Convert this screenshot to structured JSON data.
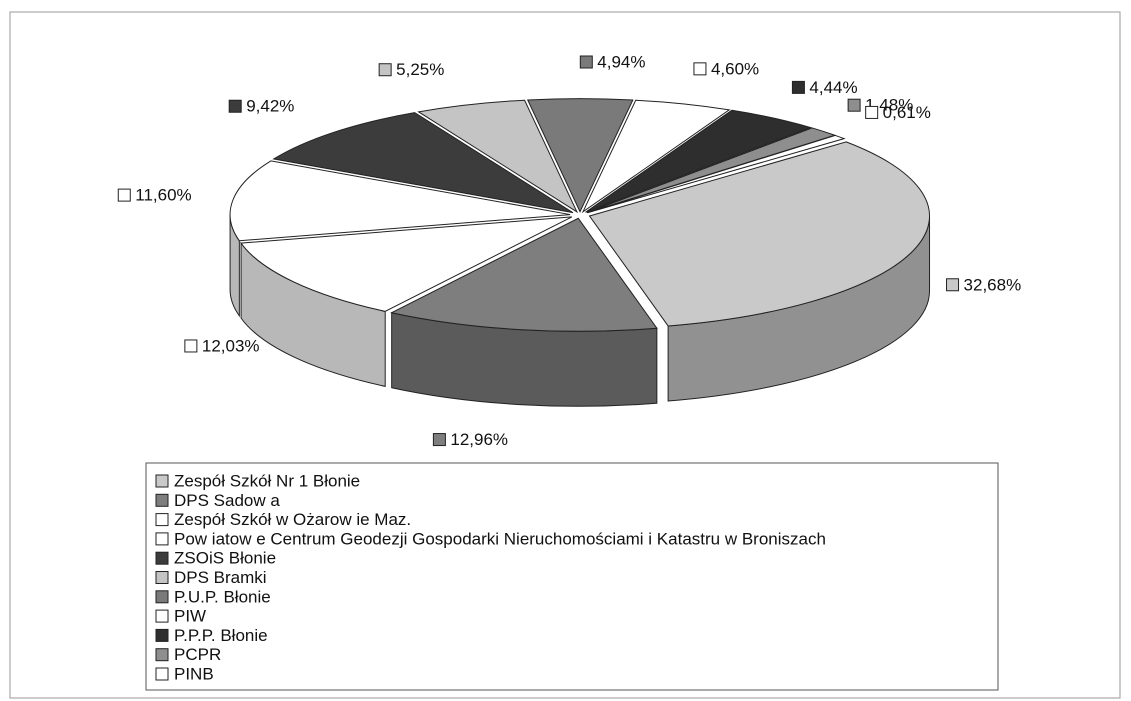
{
  "chart_data": {
    "type": "pie",
    "categories": [
      "Zespół Szkół Nr 1 Błonie",
      "DPS Sadow a",
      "Zespół Szkół w  Ożarow ie Maz.",
      "Pow iatow e Centrum Geodezji Gospodarki Nieruchomościami i Katastru w  Broniszach",
      "ZSOiS Błonie",
      "DPS Bramki",
      "P.U.P. Błonie",
      "PIW",
      "P.P.P. Błonie",
      "PCPR",
      "PINB"
    ],
    "values": [
      32.68,
      12.96,
      12.03,
      11.6,
      9.42,
      5.25,
      4.94,
      4.6,
      4.44,
      1.48,
      0.61
    ],
    "value_labels": [
      "32,68%",
      "12,96%",
      "12,03%",
      "11,60%",
      "9,42%",
      "5,25%",
      "4,94%",
      "4,60%",
      "4,44%",
      "1,48%",
      "0,61%"
    ],
    "colors": [
      "#c9c9c9",
      "#7e7e7e",
      "#ffffff",
      "#ffffff",
      "#3c3c3c",
      "#c4c4c4",
      "#7a7a7a",
      "#ffffff",
      "#2e2e2e",
      "#8e8e8e",
      "#ffffff"
    ],
    "legend": "bottom"
  }
}
